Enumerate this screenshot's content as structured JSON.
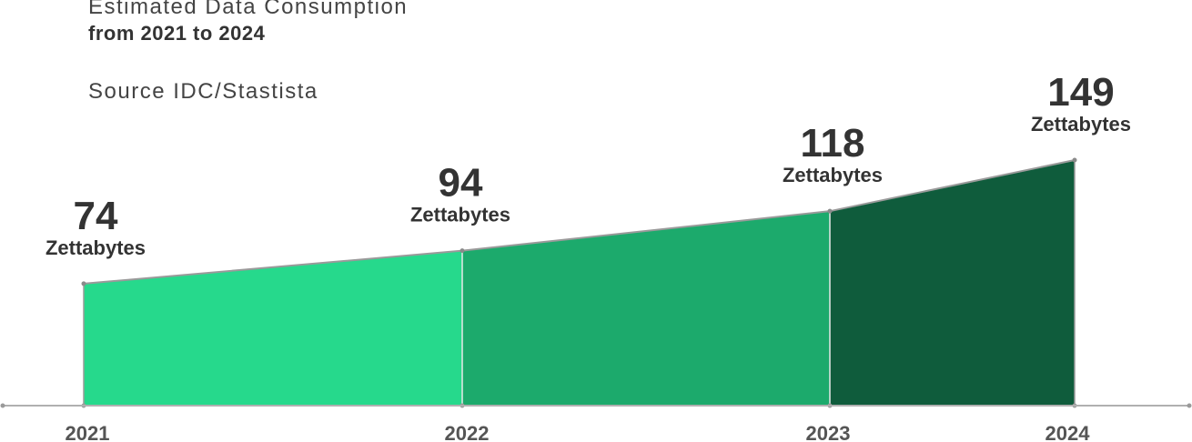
{
  "header": {
    "title_line1": "Estimated Data Consumption",
    "title_line2": "from 2021 to 2024",
    "source": "Source IDC/Stastista"
  },
  "chart_data": {
    "type": "area",
    "categories": [
      "2021",
      "2022",
      "2023",
      "2024"
    ],
    "values": [
      74,
      94,
      118,
      149
    ],
    "unit_label": "Zettabytes",
    "ylim": [
      0,
      149
    ],
    "grid": false,
    "colors": [
      "#26d98c",
      "#1caa6c",
      "#0f5c3c"
    ],
    "axis_color": "#b0b0b0",
    "outline_color": "#9a9a9a"
  }
}
